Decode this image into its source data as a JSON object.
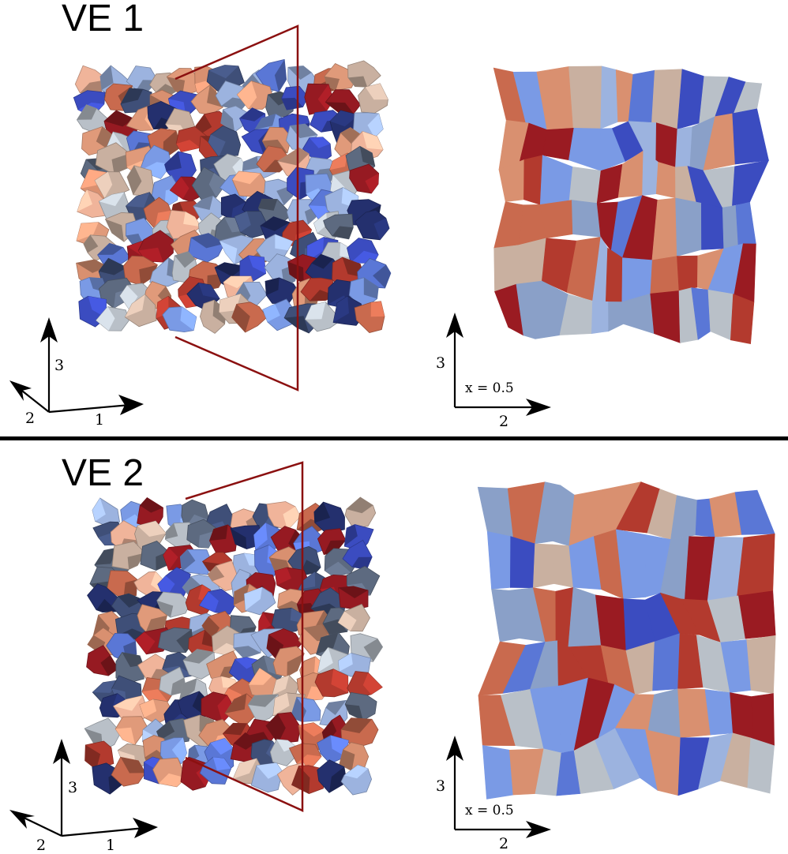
{
  "panels": [
    {
      "title": "VE 1",
      "axes3d": {
        "a": "3",
        "b": "2",
        "c": "1"
      },
      "axes2d": {
        "vertical": "3",
        "horizontal": "2",
        "slice": "x = 0.5"
      }
    },
    {
      "title": "VE 2",
      "axes3d": {
        "a": "3",
        "b": "2",
        "c": "1"
      },
      "axes2d": {
        "vertical": "3",
        "horizontal": "2",
        "slice": "x = 0.5"
      }
    }
  ],
  "colors": {
    "palette": [
      "#3b4cc0",
      "#5a77d6",
      "#7a9ae5",
      "#9cb3df",
      "#b9c0c8",
      "#c9b0a0",
      "#d99070",
      "#c96a4e",
      "#b33a2e",
      "#961a22",
      "#24306e",
      "#3f4f78",
      "#5d6a80",
      "#e09a7a",
      "#f0b49a"
    ],
    "slice_plane": "#8b1010"
  }
}
